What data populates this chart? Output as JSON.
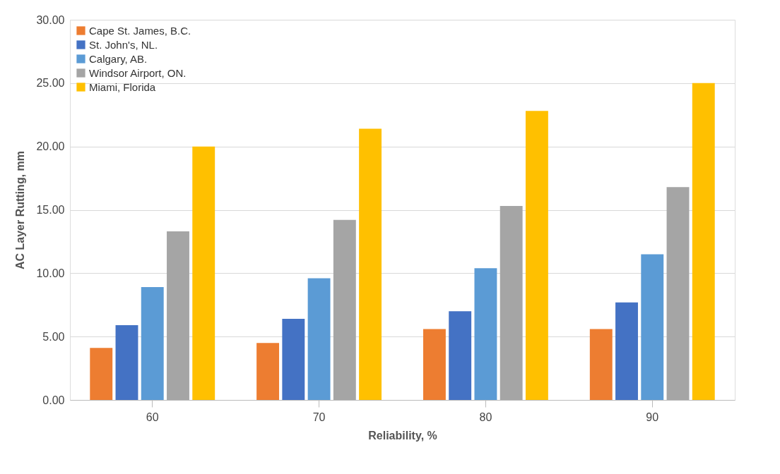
{
  "chart_data": {
    "type": "bar",
    "xlabel": "Reliability, %",
    "ylabel": "AC Layer Rutting, mm",
    "categories": [
      "60",
      "70",
      "80",
      "90"
    ],
    "series": [
      {
        "name": "Cape St. James, B.C.",
        "color": "#ed7d31",
        "values": [
          4.1,
          4.5,
          5.6,
          5.6
        ]
      },
      {
        "name": "St. John's, NL.",
        "color": "#4472c4",
        "values": [
          5.9,
          6.4,
          7.0,
          7.7
        ]
      },
      {
        "name": "Calgary, AB.",
        "color": "#5b9bd5",
        "values": [
          8.9,
          9.6,
          10.4,
          11.5
        ]
      },
      {
        "name": "Windsor Airport, ON.",
        "color": "#a5a5a5",
        "values": [
          13.3,
          14.2,
          15.3,
          16.8
        ]
      },
      {
        "name": "Miami, Florida",
        "color": "#ffc000",
        "values": [
          20.0,
          21.4,
          22.8,
          25.0
        ]
      }
    ],
    "ylim": [
      0,
      30
    ],
    "yticks": [
      {
        "value": 0,
        "label": "0.00"
      },
      {
        "value": 5,
        "label": "5.00"
      },
      {
        "value": 10,
        "label": "10.00"
      },
      {
        "value": 15,
        "label": "15.00"
      },
      {
        "value": 20,
        "label": "20.00"
      },
      {
        "value": 25,
        "label": "25.00"
      },
      {
        "value": 30,
        "label": "30.00"
      }
    ],
    "grid": "y",
    "legend": "top left"
  }
}
